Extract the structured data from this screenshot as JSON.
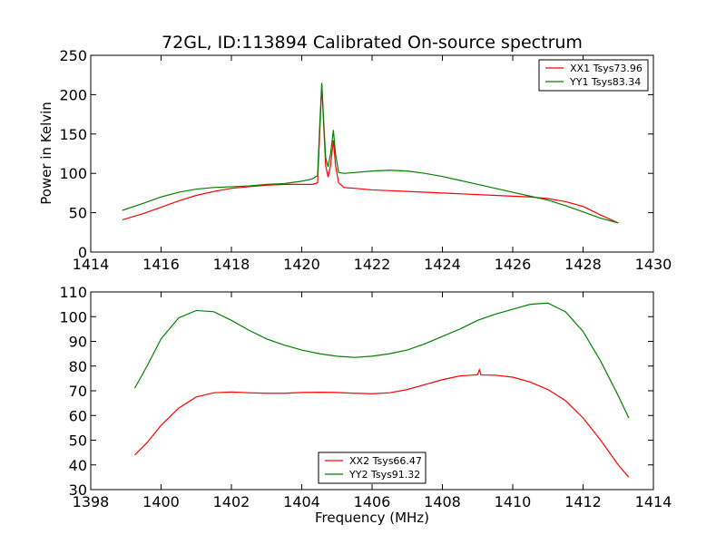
{
  "chart_data": [
    {
      "type": "line",
      "title": "72GL, ID:113894 Calibrated On-source spectrum",
      "xlabel": "",
      "ylabel": "Power in Kelvin",
      "xlim": [
        1414,
        1430
      ],
      "ylim": [
        0,
        250
      ],
      "xticks": [
        1414,
        1416,
        1418,
        1420,
        1422,
        1424,
        1426,
        1428,
        1430
      ],
      "yticks": [
        0,
        50,
        100,
        150,
        200,
        250
      ],
      "grid": false,
      "legend_position": "top-right",
      "series": [
        {
          "name": "XX1 Tsys73.96",
          "color": "#ff0000",
          "points": [
            [
              1414.9,
              41
            ],
            [
              1415.5,
              49
            ],
            [
              1416.0,
              57
            ],
            [
              1416.5,
              65
            ],
            [
              1417.0,
              72
            ],
            [
              1417.5,
              77
            ],
            [
              1418.0,
              81
            ],
            [
              1418.5,
              83
            ],
            [
              1419.0,
              85
            ],
            [
              1419.5,
              86
            ],
            [
              1420.0,
              86
            ],
            [
              1420.3,
              86
            ],
            [
              1420.45,
              88
            ],
            [
              1420.52,
              160
            ],
            [
              1420.57,
              213
            ],
            [
              1420.62,
              165
            ],
            [
              1420.68,
              110
            ],
            [
              1420.75,
              95
            ],
            [
              1420.82,
              110
            ],
            [
              1420.9,
              142
            ],
            [
              1420.96,
              110
            ],
            [
              1421.05,
              88
            ],
            [
              1421.2,
              82
            ],
            [
              1421.5,
              81
            ],
            [
              1422.0,
              79
            ],
            [
              1422.5,
              78
            ],
            [
              1423.0,
              77
            ],
            [
              1423.5,
              76
            ],
            [
              1424.0,
              75
            ],
            [
              1424.5,
              74
            ],
            [
              1425.0,
              73
            ],
            [
              1425.5,
              72
            ],
            [
              1426.0,
              71
            ],
            [
              1426.5,
              70
            ],
            [
              1427.0,
              68
            ],
            [
              1427.5,
              64
            ],
            [
              1428.0,
              58
            ],
            [
              1428.5,
              47
            ],
            [
              1429.0,
              37
            ]
          ]
        },
        {
          "name": "YY1 Tsys83.34",
          "color": "#008000",
          "points": [
            [
              1414.9,
              53
            ],
            [
              1415.5,
              62
            ],
            [
              1416.0,
              70
            ],
            [
              1416.5,
              76
            ],
            [
              1417.0,
              80
            ],
            [
              1417.5,
              82
            ],
            [
              1418.0,
              83
            ],
            [
              1418.5,
              84
            ],
            [
              1419.0,
              86
            ],
            [
              1419.5,
              87
            ],
            [
              1420.0,
              90
            ],
            [
              1420.3,
              93
            ],
            [
              1420.45,
              97
            ],
            [
              1420.52,
              170
            ],
            [
              1420.57,
              215
            ],
            [
              1420.62,
              170
            ],
            [
              1420.68,
              120
            ],
            [
              1420.75,
              108
            ],
            [
              1420.82,
              125
            ],
            [
              1420.9,
              155
            ],
            [
              1420.96,
              125
            ],
            [
              1421.05,
              101
            ],
            [
              1421.2,
              100
            ],
            [
              1421.5,
              101
            ],
            [
              1422.0,
              103
            ],
            [
              1422.5,
              104
            ],
            [
              1423.0,
              103
            ],
            [
              1423.5,
              100
            ],
            [
              1424.0,
              96
            ],
            [
              1424.5,
              91
            ],
            [
              1425.0,
              86
            ],
            [
              1425.5,
              81
            ],
            [
              1426.0,
              76
            ],
            [
              1426.5,
              71
            ],
            [
              1427.0,
              66
            ],
            [
              1427.5,
              59
            ],
            [
              1428.0,
              51
            ],
            [
              1428.5,
              43
            ],
            [
              1429.0,
              37
            ]
          ]
        }
      ]
    },
    {
      "type": "line",
      "title": "",
      "xlabel": "Frequency (MHz)",
      "ylabel": "",
      "xlim": [
        1398,
        1414
      ],
      "ylim": [
        30,
        110
      ],
      "xticks": [
        1398,
        1400,
        1402,
        1404,
        1406,
        1408,
        1410,
        1412,
        1414
      ],
      "yticks": [
        30,
        40,
        50,
        60,
        70,
        80,
        90,
        100,
        110
      ],
      "grid": false,
      "legend_position": "bottom-center",
      "series": [
        {
          "name": "XX2 Tsys66.47",
          "color": "#ff0000",
          "points": [
            [
              1399.25,
              44
            ],
            [
              1399.6,
              49
            ],
            [
              1400.0,
              56
            ],
            [
              1400.5,
              63
            ],
            [
              1401.0,
              67.5
            ],
            [
              1401.5,
              69.2
            ],
            [
              1402.0,
              69.5
            ],
            [
              1402.5,
              69.2
            ],
            [
              1403.0,
              69
            ],
            [
              1403.5,
              69
            ],
            [
              1404.0,
              69.3
            ],
            [
              1404.5,
              69.4
            ],
            [
              1405.0,
              69.3
            ],
            [
              1405.5,
              69
            ],
            [
              1406.0,
              68.8
            ],
            [
              1406.5,
              69.2
            ],
            [
              1407.0,
              70.5
            ],
            [
              1407.5,
              72.5
            ],
            [
              1408.0,
              74.5
            ],
            [
              1408.5,
              76
            ],
            [
              1409.0,
              76.5
            ],
            [
              1409.05,
              78.5
            ],
            [
              1409.1,
              76.4
            ],
            [
              1409.5,
              76.3
            ],
            [
              1410.0,
              75.5
            ],
            [
              1410.5,
              73.5
            ],
            [
              1411.0,
              70.5
            ],
            [
              1411.5,
              66
            ],
            [
              1412.0,
              59
            ],
            [
              1412.5,
              50
            ],
            [
              1413.0,
              40
            ],
            [
              1413.3,
              35
            ]
          ]
        },
        {
          "name": "YY2 Tsys91.32",
          "color": "#008000",
          "points": [
            [
              1399.25,
              71
            ],
            [
              1399.6,
              80
            ],
            [
              1400.0,
              91
            ],
            [
              1400.5,
              99.5
            ],
            [
              1401.0,
              102.5
            ],
            [
              1401.5,
              102
            ],
            [
              1402.0,
              98.5
            ],
            [
              1402.5,
              94.5
            ],
            [
              1403.0,
              91
            ],
            [
              1403.5,
              88.5
            ],
            [
              1404.0,
              86.5
            ],
            [
              1404.5,
              85
            ],
            [
              1405.0,
              84
            ],
            [
              1405.5,
              83.5
            ],
            [
              1406.0,
              84
            ],
            [
              1406.5,
              85
            ],
            [
              1407.0,
              86.5
            ],
            [
              1407.5,
              89
            ],
            [
              1408.0,
              92
            ],
            [
              1408.5,
              95
            ],
            [
              1409.0,
              98.5
            ],
            [
              1409.5,
              101
            ],
            [
              1410.0,
              103
            ],
            [
              1410.5,
              105
            ],
            [
              1411.0,
              105.5
            ],
            [
              1411.5,
              102
            ],
            [
              1412.0,
              94
            ],
            [
              1412.5,
              82
            ],
            [
              1413.0,
              68
            ],
            [
              1413.3,
              59
            ]
          ]
        }
      ]
    }
  ]
}
